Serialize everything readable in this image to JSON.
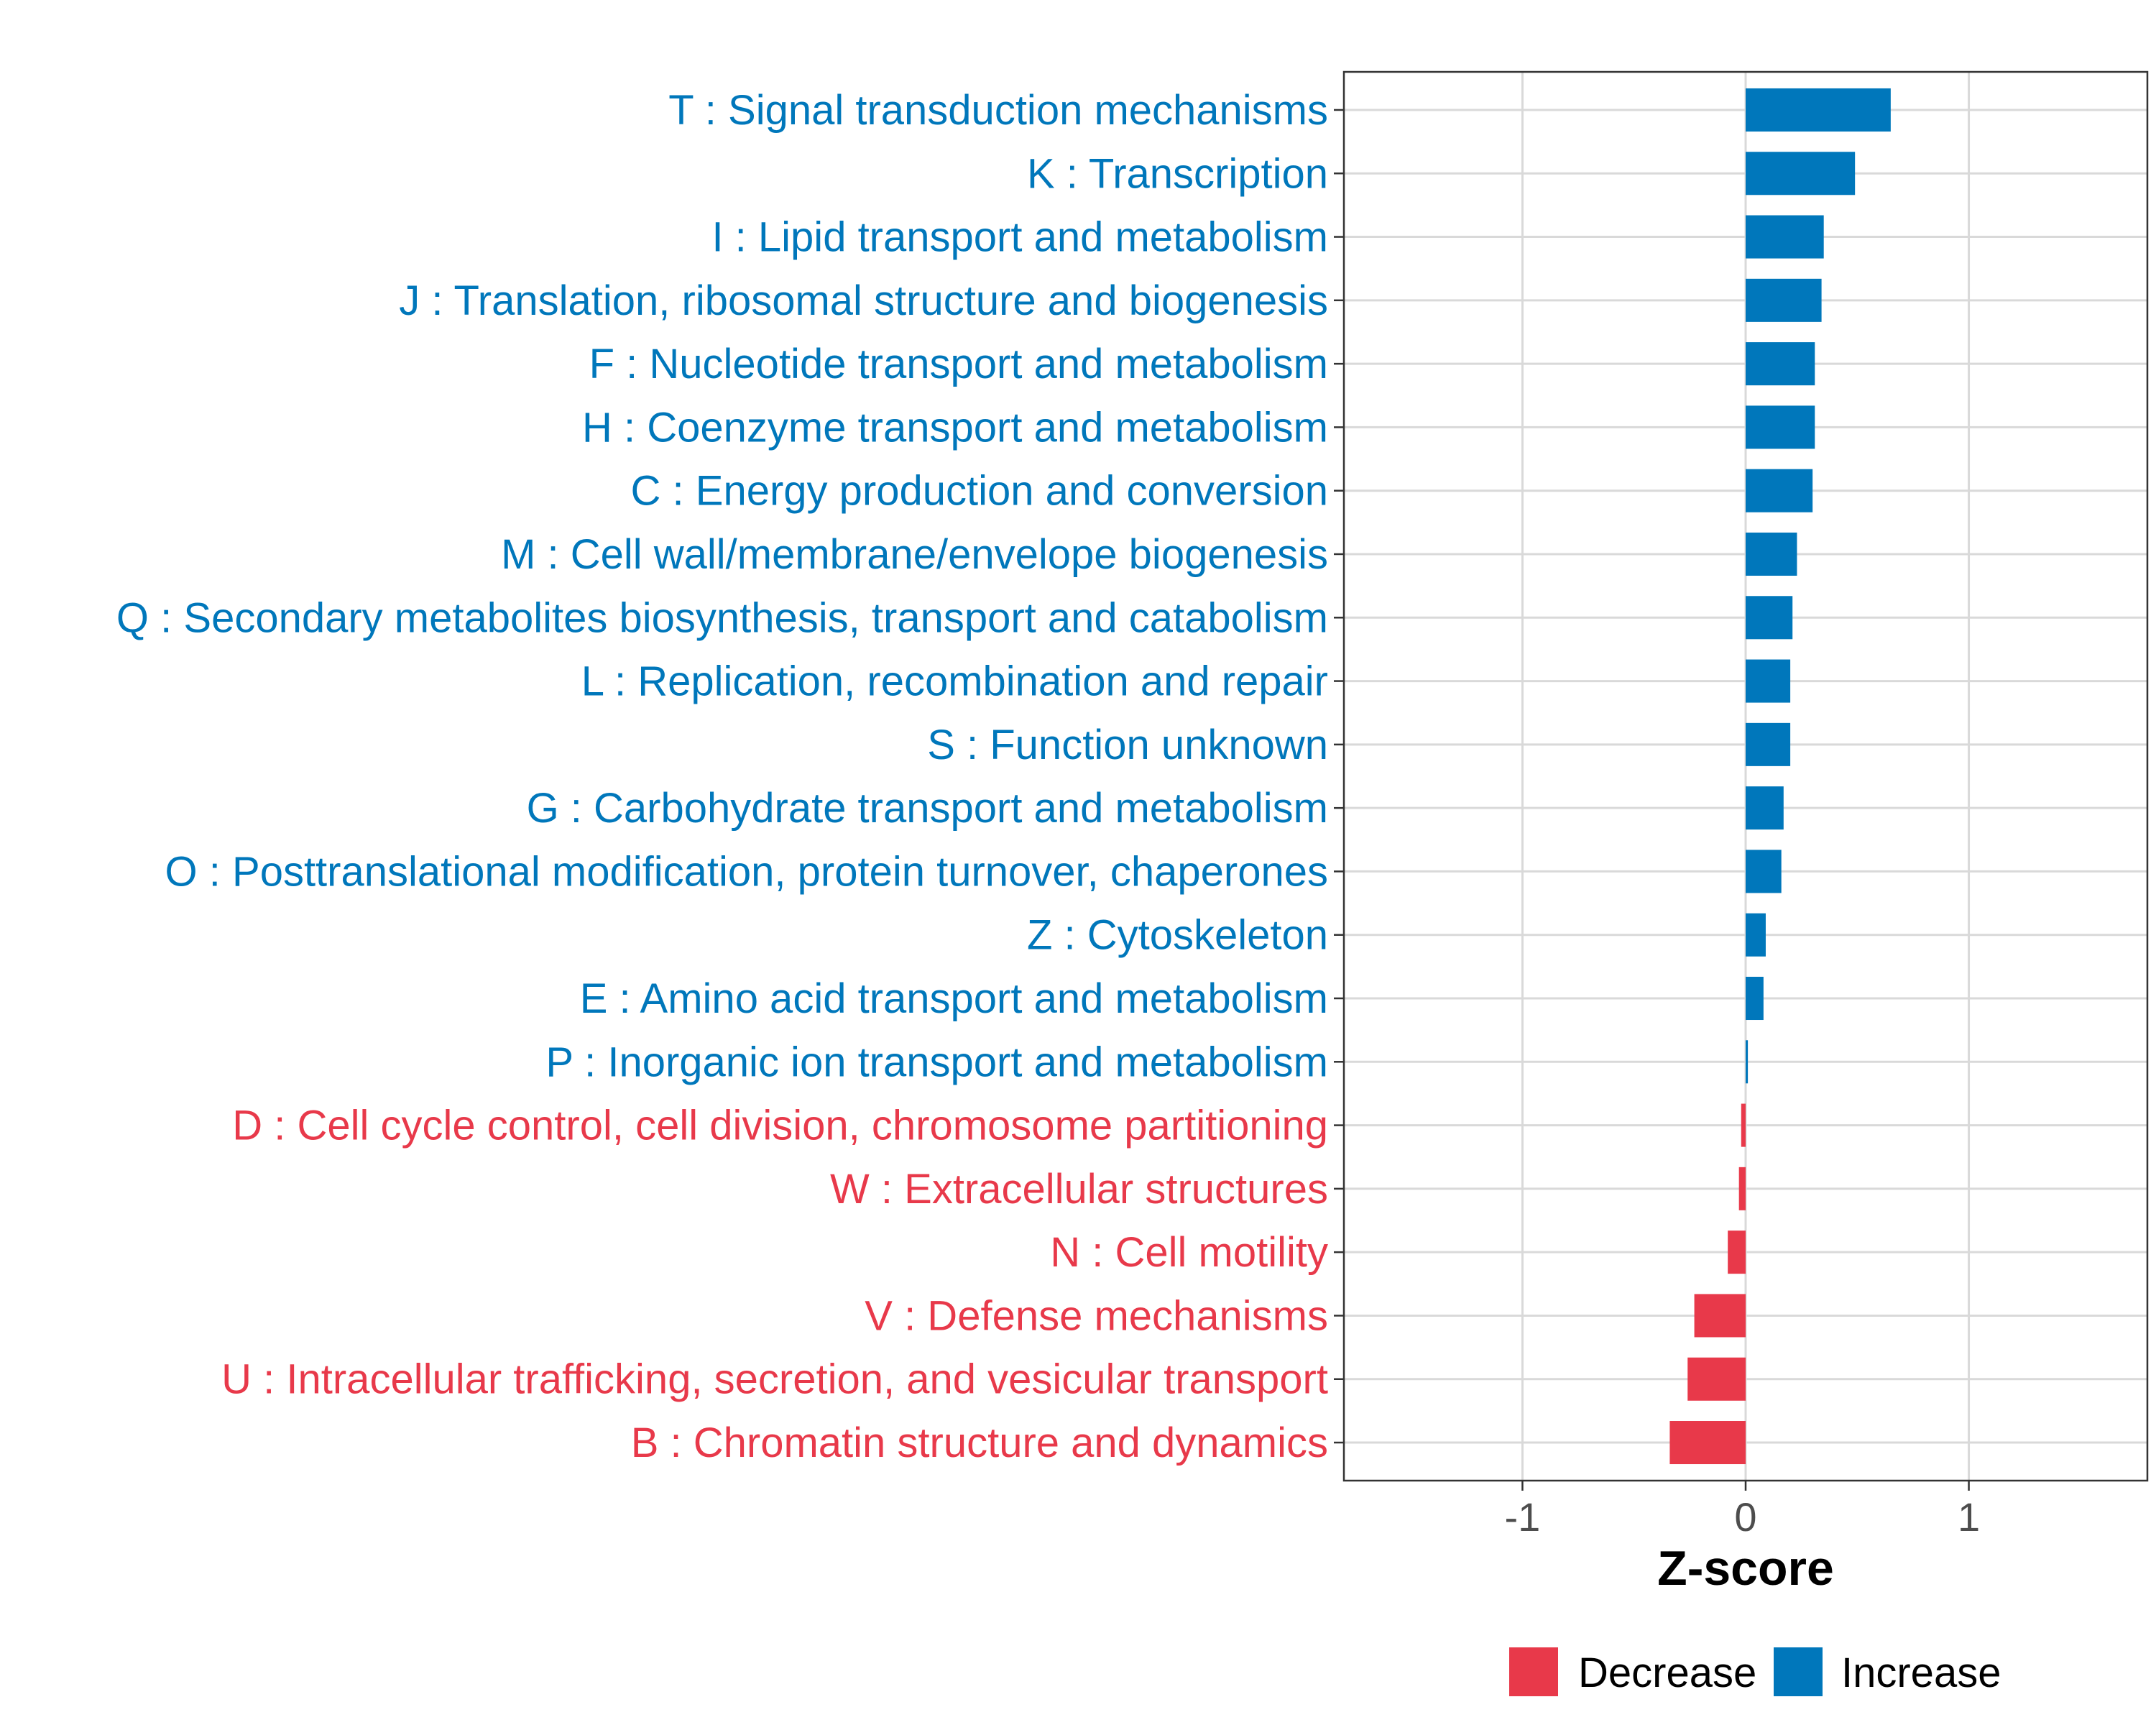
{
  "chart_data": {
    "type": "bar",
    "orientation": "horizontal",
    "xlabel": "Z-score",
    "ylabel": "",
    "xlim": [
      -1.8,
      1.8
    ],
    "xticks": [
      -1,
      0,
      1
    ],
    "xtick_labels": [
      "-1",
      "0",
      "1"
    ],
    "grid": true,
    "legend_position": "bottom",
    "legend": [
      {
        "name": "Decrease",
        "color": "#E8394A"
      },
      {
        "name": "Increase",
        "color": "#0077BB"
      }
    ],
    "categories": [
      "T : Signal transduction mechanisms",
      "K : Transcription",
      "I : Lipid transport and metabolism",
      "J : Translation, ribosomal structure and biogenesis",
      "F : Nucleotide transport and metabolism",
      "H : Coenzyme transport and metabolism",
      "C : Energy production and conversion",
      "M : Cell wall/membrane/envelope biogenesis",
      "Q : Secondary metabolites biosynthesis, transport and catabolism",
      "L : Replication, recombination and repair",
      "S : Function unknown",
      "G : Carbohydrate transport and metabolism",
      "O : Posttranslational modification, protein turnover, chaperones",
      "Z : Cytoskeleton",
      "E : Amino acid transport and metabolism",
      "P : Inorganic ion transport and metabolism",
      "D : Cell cycle control, cell division, chromosome partitioning",
      "W : Extracellular structures",
      "N : Cell motility",
      "V : Defense mechanisms",
      "U : Intracellular trafficking, secretion, and vesicular transport",
      "B : Chromatin structure and dynamics"
    ],
    "values": [
      0.65,
      0.49,
      0.35,
      0.34,
      0.31,
      0.31,
      0.3,
      0.23,
      0.21,
      0.2,
      0.2,
      0.17,
      0.16,
      0.09,
      0.08,
      0.01,
      -0.02,
      -0.03,
      -0.08,
      -0.23,
      -0.26,
      -0.34
    ],
    "groups": [
      "Increase",
      "Increase",
      "Increase",
      "Increase",
      "Increase",
      "Increase",
      "Increase",
      "Increase",
      "Increase",
      "Increase",
      "Increase",
      "Increase",
      "Increase",
      "Increase",
      "Increase",
      "Increase",
      "Decrease",
      "Decrease",
      "Decrease",
      "Decrease",
      "Decrease",
      "Decrease"
    ]
  }
}
